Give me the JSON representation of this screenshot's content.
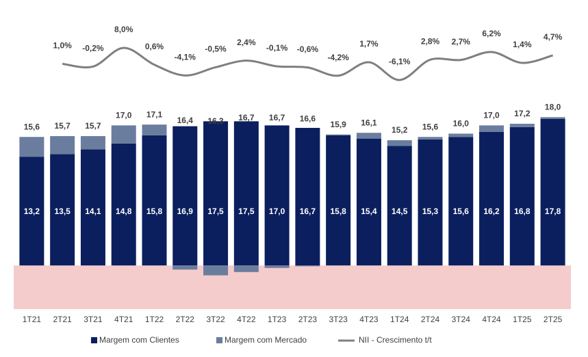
{
  "chart_data": {
    "type": "bar",
    "stacked": true,
    "categories": [
      "1T21",
      "2T21",
      "3T21",
      "4T21",
      "1T22",
      "2T22",
      "3T22",
      "4T22",
      "1T23",
      "2T23",
      "3T23",
      "4T23",
      "1T24",
      "2T24",
      "3T24",
      "4T24",
      "1T25",
      "2T25"
    ],
    "series": [
      {
        "name": "Margem com Clientes",
        "color": "#0b1f5e",
        "values": [
          13.2,
          13.5,
          14.1,
          14.8,
          15.8,
          16.9,
          17.5,
          17.5,
          17.0,
          16.7,
          15.8,
          15.4,
          14.5,
          15.3,
          15.6,
          16.2,
          16.8,
          17.8
        ],
        "value_labels": [
          "13,2",
          "13,5",
          "14,1",
          "14,8",
          "15,8",
          "16,9",
          "17,5",
          "17,5",
          "17,0",
          "16,7",
          "15,8",
          "15,4",
          "14,5",
          "15,3",
          "15,6",
          "16,2",
          "16,8",
          "17,8"
        ]
      },
      {
        "name": "Margem com Mercado",
        "color": "#6a7d9e",
        "values": [
          2.4,
          2.2,
          1.6,
          2.2,
          1.3,
          -0.5,
          -1.2,
          -0.8,
          -0.3,
          -0.1,
          0.1,
          0.7,
          0.7,
          0.3,
          0.4,
          0.8,
          0.4,
          0.2
        ]
      },
      {
        "name": "NII - Crescimento t/t",
        "type": "line",
        "axis": "y2",
        "color": "#7f7f7f",
        "values": [
          null,
          1.0,
          -0.2,
          8.0,
          0.6,
          -4.1,
          -0.5,
          2.4,
          -0.1,
          -0.6,
          -4.2,
          1.7,
          -6.1,
          2.8,
          2.7,
          6.2,
          1.4,
          4.7
        ],
        "value_labels": [
          null,
          "1,0%",
          "-0,2%",
          "8,0%",
          "0,6%",
          "-4,1%",
          "-0,5%",
          "2,4%",
          "-0,1%",
          "-0,6%",
          "-4,2%",
          "1,7%",
          "-6,1%",
          "2,8%",
          "2,7%",
          "6,2%",
          "1,4%",
          "4,7%"
        ]
      }
    ],
    "totals": [
      15.6,
      15.7,
      15.7,
      17.0,
      17.1,
      16.4,
      16.3,
      16.7,
      16.7,
      16.6,
      15.9,
      16.1,
      15.2,
      15.6,
      16.0,
      17.0,
      17.2,
      18.0
    ],
    "total_labels": [
      "15,6",
      "15,7",
      "15,7",
      "17,0",
      "17,1",
      "16,4",
      "16,3",
      "16,7",
      "16,7",
      "16,6",
      "15,9",
      "16,1",
      "15,2",
      "15,6",
      "16,0",
      "17,0",
      "17,2",
      "18,0"
    ],
    "ylim": [
      -5.3,
      20.6
    ],
    "y2lim": [
      -10,
      17
    ],
    "negative_band_color": "#f4cccc",
    "legend": "bottom"
  }
}
